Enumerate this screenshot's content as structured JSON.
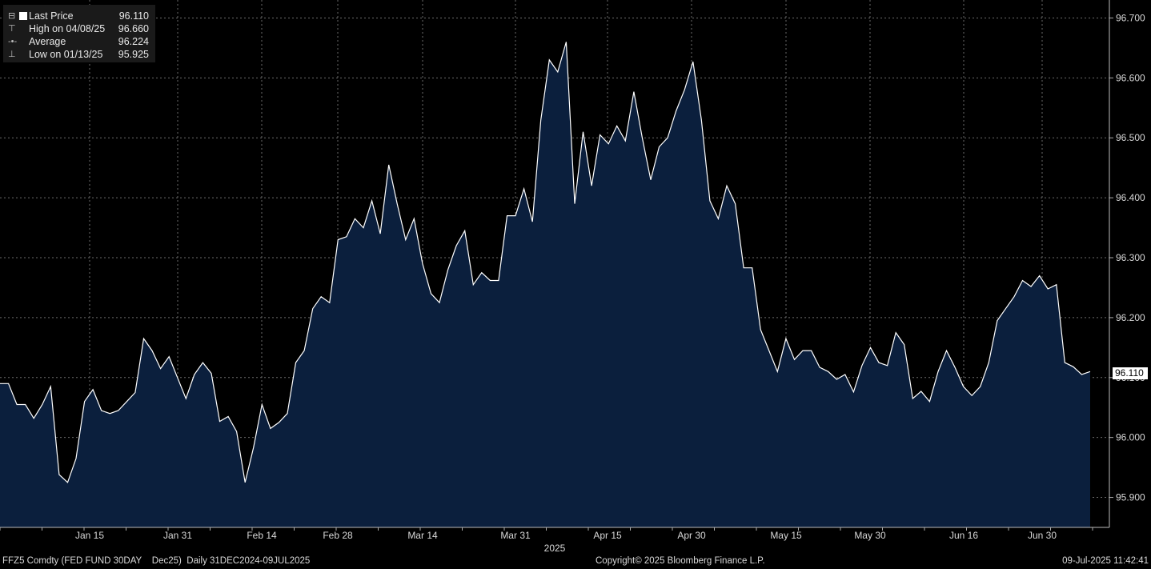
{
  "legend": {
    "last_label": "Last Price",
    "last_value": "96.110",
    "high_label": "High on 04/08/25",
    "high_value": "96.660",
    "avg_label": "Average",
    "avg_value": "96.224",
    "low_label": "Low on 01/13/25",
    "low_value": "95.925"
  },
  "footer": {
    "left": "FFZ5 Comdty (FED FUND 30DAY    Dec25)  Daily 31DEC2024-09JUL2025",
    "center": "Copyright© 2025 Bloomberg Finance L.P.",
    "right": "09-Jul-2025 11:42:41"
  },
  "last_price_box": "96.110",
  "colors": {
    "background": "#000000",
    "area_fill": "#0b1f3d",
    "line": "#ffffff",
    "grid": "#6a6a6a"
  },
  "chart_data": {
    "type": "area",
    "ylim": [
      95.85,
      96.73
    ],
    "y_ticks": [
      "95.900",
      "96.000",
      "96.100",
      "96.200",
      "96.300",
      "96.400",
      "96.500",
      "96.600",
      "96.700"
    ],
    "x_tick_labels": [
      "Jan 15",
      "Jan 31",
      "Feb 14",
      "Feb 28",
      "Mar 14",
      "Mar 31",
      "Apr 15",
      "Apr 30",
      "May 15",
      "May 30",
      "Jun 16",
      "Jun 30"
    ],
    "year_label": "2025",
    "series": [
      {
        "values": [
          96.09,
          96.09,
          96.055,
          96.055,
          96.032,
          96.055,
          96.085,
          95.938,
          95.925,
          95.965,
          96.06,
          96.08,
          96.045,
          96.04,
          96.045,
          96.06,
          96.075,
          96.165,
          96.145,
          96.115,
          96.135,
          96.1,
          96.065,
          96.105,
          96.125,
          96.107,
          96.027,
          96.035,
          96.01,
          95.925,
          95.983,
          96.055,
          96.015,
          96.025,
          96.04,
          96.125,
          96.145,
          96.215,
          96.235,
          96.225,
          96.33,
          96.335,
          96.365,
          96.35,
          96.395,
          96.34,
          96.455,
          96.39,
          96.33,
          96.365,
          96.29,
          96.24,
          96.225,
          96.28,
          96.32,
          96.345,
          96.255,
          96.275,
          96.262,
          96.262,
          96.37,
          96.37,
          96.415,
          96.36,
          96.53,
          96.63,
          96.61,
          96.66,
          96.39,
          96.51,
          96.42,
          96.505,
          96.49,
          96.52,
          96.495,
          96.577,
          96.5,
          96.43,
          96.485,
          96.5,
          96.545,
          96.58,
          96.627,
          96.53,
          96.395,
          96.365,
          96.42,
          96.39,
          96.283,
          96.283,
          96.18,
          96.145,
          96.11,
          96.165,
          96.13,
          96.145,
          96.145,
          96.117,
          96.11,
          96.097,
          96.105,
          96.076,
          96.12,
          96.15,
          96.125,
          96.12,
          96.175,
          96.155,
          96.065,
          96.077,
          96.06,
          96.11,
          96.145,
          96.117,
          96.085,
          96.07,
          96.085,
          96.125,
          96.195,
          96.215,
          96.235,
          96.262,
          96.252,
          96.27,
          96.248,
          96.255,
          96.125,
          96.118,
          96.105,
          96.11
        ]
      }
    ]
  }
}
